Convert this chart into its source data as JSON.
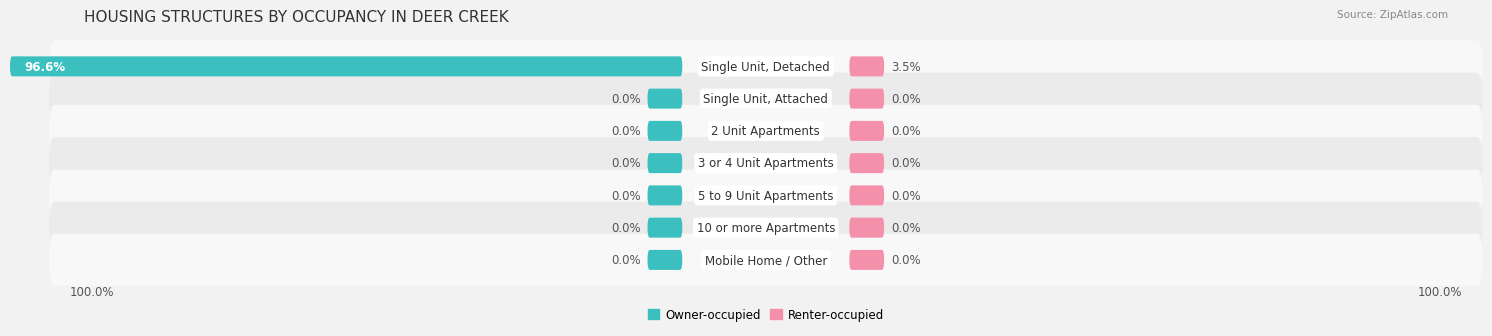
{
  "title": "HOUSING STRUCTURES BY OCCUPANCY IN DEER CREEK",
  "source": "Source: ZipAtlas.com",
  "categories": [
    "Single Unit, Detached",
    "Single Unit, Attached",
    "2 Unit Apartments",
    "3 or 4 Unit Apartments",
    "5 to 9 Unit Apartments",
    "10 or more Apartments",
    "Mobile Home / Other"
  ],
  "owner_values": [
    96.6,
    0.0,
    0.0,
    0.0,
    0.0,
    0.0,
    0.0
  ],
  "renter_values": [
    3.5,
    0.0,
    0.0,
    0.0,
    0.0,
    0.0,
    0.0
  ],
  "owner_color": "#3bbfbf",
  "renter_color": "#f490aa",
  "owner_label": "Owner-occupied",
  "renter_label": "Renter-occupied",
  "background_color": "#f2f2f2",
  "row_color_odd": "#ebebeb",
  "row_color_even": "#f8f8f8",
  "xlim": 100,
  "min_bar_display": 5.0,
  "title_fontsize": 11,
  "label_fontsize": 8.5,
  "tick_fontsize": 8.5,
  "legend_fontsize": 8.5
}
